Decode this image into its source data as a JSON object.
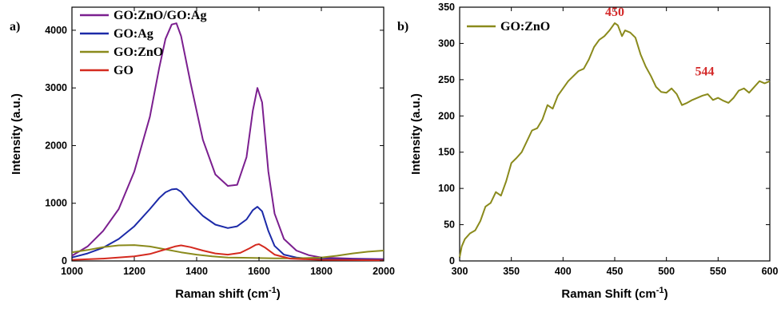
{
  "chart_data": [
    {
      "type": "line",
      "panel_label": "a)",
      "xlabel": "Raman shift (cm",
      "xlabel_sup": "-1",
      "xlabel_end": ")",
      "ylabel": "Intensity (a.u.)",
      "xlim": [
        1000,
        2000
      ],
      "ylim": [
        0,
        4400
      ],
      "xticks": [
        1000,
        1200,
        1400,
        1600,
        1800,
        2000
      ],
      "xtick_labels": [
        "1000",
        "1200",
        "1400",
        "1600",
        "1800",
        "2000"
      ],
      "yticks": [
        0,
        1000,
        2000,
        3000,
        4000
      ],
      "ytick_labels": [
        "0",
        "1000",
        "2000",
        "3000",
        "4000"
      ],
      "legend_position": "top-left",
      "series": [
        {
          "name": "GO:ZnO/GO:Ag",
          "color": "#7b1f8f",
          "x": [
            1000,
            1050,
            1100,
            1150,
            1200,
            1250,
            1280,
            1300,
            1320,
            1335,
            1350,
            1380,
            1420,
            1460,
            1500,
            1530,
            1560,
            1580,
            1595,
            1610,
            1630,
            1650,
            1680,
            1720,
            1760,
            1800,
            1900,
            2000
          ],
          "y": [
            90,
            250,
            520,
            900,
            1550,
            2500,
            3350,
            3850,
            4100,
            4120,
            3900,
            3100,
            2100,
            1500,
            1300,
            1320,
            1800,
            2600,
            3000,
            2750,
            1550,
            820,
            380,
            180,
            100,
            60,
            40,
            30
          ]
        },
        {
          "name": "GO:Ag",
          "color": "#1c2aa8",
          "x": [
            1000,
            1050,
            1100,
            1150,
            1200,
            1250,
            1280,
            1300,
            1320,
            1335,
            1350,
            1380,
            1420,
            1460,
            1500,
            1530,
            1560,
            1580,
            1595,
            1610,
            1630,
            1650,
            1680,
            1720,
            1760,
            1800,
            1900,
            2000
          ],
          "y": [
            60,
            130,
            230,
            380,
            600,
            900,
            1090,
            1190,
            1240,
            1250,
            1200,
            1000,
            780,
            630,
            570,
            600,
            720,
            880,
            940,
            860,
            520,
            260,
            110,
            60,
            40,
            30,
            25,
            20
          ]
        },
        {
          "name": "GO:ZnO",
          "color": "#8a8a1c",
          "x": [
            1000,
            1050,
            1100,
            1150,
            1200,
            1250,
            1300,
            1350,
            1400,
            1450,
            1500,
            1550,
            1600,
            1650,
            1700,
            1750,
            1800,
            1850,
            1900,
            1950,
            2000
          ],
          "y": [
            150,
            190,
            240,
            270,
            275,
            250,
            200,
            150,
            110,
            80,
            60,
            55,
            50,
            45,
            45,
            50,
            60,
            90,
            130,
            160,
            180
          ]
        },
        {
          "name": "GO",
          "color": "#d42a1f",
          "x": [
            1000,
            1100,
            1200,
            1250,
            1300,
            1330,
            1350,
            1380,
            1420,
            1460,
            1500,
            1540,
            1570,
            1590,
            1600,
            1620,
            1650,
            1700,
            1800,
            1900,
            2000
          ],
          "y": [
            20,
            40,
            80,
            120,
            200,
            250,
            270,
            240,
            180,
            130,
            110,
            140,
            220,
            280,
            290,
            230,
            110,
            40,
            20,
            15,
            10
          ]
        }
      ]
    },
    {
      "type": "line",
      "panel_label": "b)",
      "xlabel": "Raman Shift (cm",
      "xlabel_sup": "-1",
      "xlabel_end": ")",
      "ylabel": "Intensity (a.u.)",
      "xlim": [
        300,
        600
      ],
      "ylim": [
        0,
        350
      ],
      "xticks": [
        300,
        350,
        400,
        450,
        500,
        550,
        600
      ],
      "xtick_labels": [
        "300",
        "350",
        "400",
        "450",
        "500",
        "550",
        "600"
      ],
      "yticks": [
        0,
        50,
        100,
        150,
        200,
        250,
        300,
        350
      ],
      "ytick_labels": [
        "0",
        "50",
        "100",
        "150",
        "200",
        "250",
        "300",
        "350"
      ],
      "legend_position": "top-left",
      "annotations": [
        {
          "text": "450",
          "x": 450,
          "y": 338,
          "color": "#d42a2a"
        },
        {
          "text": "544",
          "x": 537,
          "y": 256,
          "color": "#d42a2a"
        }
      ],
      "series": [
        {
          "name": "GO:ZnO",
          "color": "#8a8a1c",
          "x": [
            300,
            302,
            305,
            310,
            315,
            320,
            325,
            330,
            335,
            340,
            345,
            350,
            355,
            360,
            365,
            370,
            375,
            380,
            385,
            390,
            395,
            400,
            405,
            410,
            415,
            420,
            425,
            430,
            435,
            440,
            445,
            450,
            453,
            457,
            460,
            465,
            470,
            475,
            480,
            485,
            490,
            495,
            500,
            505,
            510,
            515,
            520,
            525,
            530,
            535,
            540,
            545,
            550,
            555,
            560,
            565,
            570,
            575,
            580,
            585,
            590,
            595,
            600
          ],
          "y": [
            5,
            20,
            30,
            38,
            42,
            55,
            75,
            80,
            95,
            90,
            110,
            135,
            142,
            150,
            165,
            180,
            183,
            195,
            215,
            210,
            228,
            238,
            248,
            255,
            262,
            265,
            278,
            295,
            305,
            310,
            318,
            328,
            325,
            310,
            318,
            315,
            308,
            285,
            268,
            255,
            240,
            233,
            232,
            238,
            230,
            215,
            218,
            222,
            225,
            228,
            230,
            222,
            225,
            221,
            218,
            225,
            235,
            238,
            232,
            240,
            248,
            245,
            248
          ]
        }
      ]
    }
  ]
}
